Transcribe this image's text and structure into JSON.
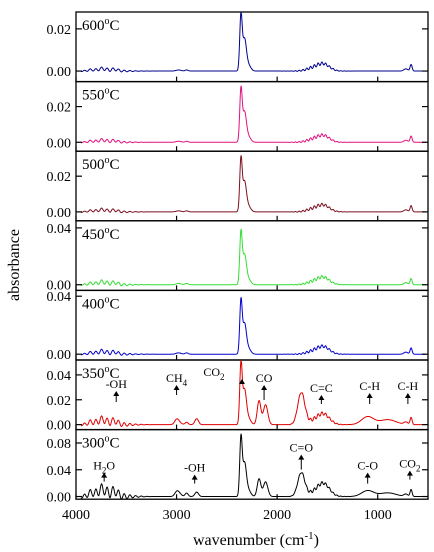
{
  "chart_data": {
    "type": "line",
    "xlabel": "wavenumber (cm",
    "xlabel_sup": "-1",
    "xlabel_end": ")",
    "ylabel": "absorbance",
    "xlim": [
      4000,
      500
    ],
    "x_ticks": [
      4000,
      3000,
      2000,
      1000
    ],
    "x_tick_labels": [
      "4000",
      "3000",
      "2000",
      "1000"
    ],
    "panels": [
      {
        "label": "600",
        "unit": "C",
        "color": "#00008b",
        "ylim": [
          -0.005,
          0.028
        ],
        "y_ticks": [
          0.0,
          0.02
        ],
        "y_tick_labels": [
          "0.00",
          "0.02"
        ],
        "peak_scale": 0.026,
        "co_scale": 0.0,
        "water_scale": 1.0
      },
      {
        "label": "550",
        "unit": "C",
        "color": "#e0117f",
        "ylim": [
          -0.005,
          0.034
        ],
        "y_ticks": [
          0.0,
          0.02
        ],
        "y_tick_labels": [
          "0.00",
          "0.02"
        ],
        "peak_scale": 0.029,
        "co_scale": 0.0,
        "water_scale": 1.0
      },
      {
        "label": "500",
        "unit": "C",
        "color": "#7b0f1f",
        "ylim": [
          -0.005,
          0.034
        ],
        "y_ticks": [
          0.0,
          0.02
        ],
        "y_tick_labels": [
          "0.00",
          "0.02"
        ],
        "peak_scale": 0.029,
        "co_scale": 0.0,
        "water_scale": 1.0
      },
      {
        "label": "450",
        "unit": "C",
        "color": "#33dd33",
        "ylim": [
          -0.004,
          0.045
        ],
        "y_ticks": [
          0.0,
          0.04
        ],
        "y_tick_labels": [
          "0.00",
          "0.04"
        ],
        "peak_scale": 0.036,
        "co_scale": 0.0,
        "water_scale": 1.3
      },
      {
        "label": "400",
        "unit": "C",
        "color": "#0000cd",
        "ylim": [
          -0.004,
          0.044
        ],
        "y_ticks": [
          0.0,
          0.04
        ],
        "y_tick_labels": [
          "0.00",
          "0.04"
        ],
        "peak_scale": 0.036,
        "co_scale": 0.0,
        "water_scale": 1.3
      },
      {
        "label": "350",
        "unit": "C",
        "color": "#e00000",
        "ylim": [
          -0.004,
          0.052
        ],
        "y_ticks": [
          0.0,
          0.02,
          0.04
        ],
        "y_tick_labels": [
          "0.00",
          "0.02",
          "0.04"
        ],
        "peak_scale": 0.048,
        "co_scale": 0.016,
        "water_scale": 2.0
      },
      {
        "label": "300",
        "unit": "C",
        "color": "#000000",
        "ylim": [
          -0.004,
          0.1
        ],
        "y_ticks": [
          0.0,
          0.04,
          0.08
        ],
        "y_tick_labels": [
          "0.00",
          "0.04",
          "0.08"
        ],
        "peak_scale": 0.086,
        "co_scale": 0.022,
        "water_scale": 3.0
      }
    ],
    "annotations_350": [
      {
        "text": "-OH",
        "x": 3600
      },
      {
        "text": "CH",
        "sub": "4",
        "x": 3000
      },
      {
        "text": "CO",
        "sub": "2",
        "x": 2350
      },
      {
        "text": "CO",
        "x": 2130
      },
      {
        "text": "C=C",
        "x": 1560
      },
      {
        "text": "C-H",
        "x": 1080
      },
      {
        "text": "C-H",
        "x": 700
      }
    ],
    "annotations_300": [
      {
        "text": "H",
        "sub": "2",
        "end": "O",
        "x": 3720
      },
      {
        "text": "-OH",
        "x": 2820
      },
      {
        "text": "C=O",
        "x": 1760
      },
      {
        "text": "C-O",
        "x": 1100
      },
      {
        "text": "CO",
        "sub": "2",
        "x": 680
      }
    ]
  }
}
